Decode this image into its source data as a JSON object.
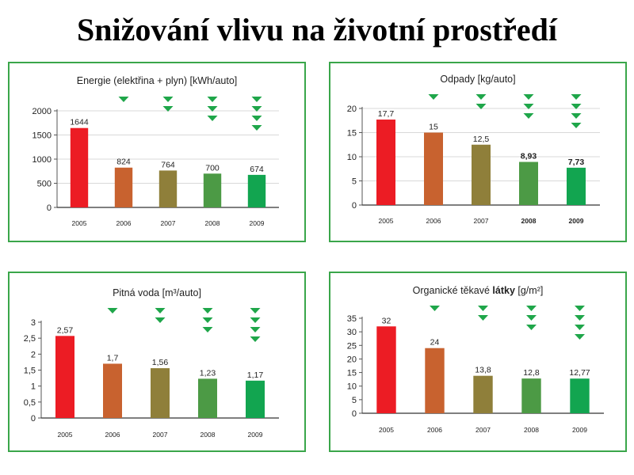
{
  "page": {
    "title": "Snižování vlivu na životní prostředí"
  },
  "colors": {
    "panel_border": "#3aa64a",
    "arrow": "#1fa64a",
    "grid": "#d9d9d9"
  },
  "chart_data": [
    {
      "type": "bar",
      "title": "Energie (elektřina + plyn) [kWh/auto]",
      "title_parts": [
        {
          "text": "Energie (elektřina + plyn) [kWh/auto]",
          "bold": false
        }
      ],
      "categories": [
        "2005",
        "2006",
        "2007",
        "2008",
        "2009"
      ],
      "values": [
        1644,
        824,
        764,
        700,
        674
      ],
      "data_labels": [
        "1644",
        "824",
        "764",
        "700",
        "674"
      ],
      "label_bold": [
        false,
        false,
        false,
        false,
        false
      ],
      "cat_bold": [
        false,
        false,
        false,
        false,
        false
      ],
      "arrows": [
        0,
        1,
        2,
        3,
        4
      ],
      "colors": [
        "#ec1c24",
        "#c8622f",
        "#8f7f3a",
        "#4c9a45",
        "#12a550"
      ],
      "ylim": [
        0,
        2000
      ],
      "yticks": [
        "0",
        "500",
        "1000",
        "1500",
        "2000"
      ],
      "ytick_values": [
        0,
        500,
        1000,
        1500,
        2000
      ],
      "grid": true
    },
    {
      "type": "bar",
      "title": "Odpady [kg/auto]",
      "title_parts": [
        {
          "text": "Odpady [kg/auto]",
          "bold": false
        }
      ],
      "categories": [
        "2005",
        "2006",
        "2007",
        "2008",
        "2009"
      ],
      "values": [
        17.7,
        15,
        12.5,
        8.93,
        7.73
      ],
      "data_labels": [
        "17,7",
        "15",
        "12,5",
        "8,93",
        "7,73"
      ],
      "label_bold": [
        false,
        false,
        false,
        true,
        true
      ],
      "cat_bold": [
        false,
        false,
        false,
        true,
        true
      ],
      "arrows": [
        0,
        1,
        2,
        3,
        4
      ],
      "colors": [
        "#ec1c24",
        "#c8622f",
        "#8f7f3a",
        "#4c9a45",
        "#12a550"
      ],
      "ylim": [
        0,
        20
      ],
      "yticks": [
        "0",
        "5",
        "10",
        "15",
        "20"
      ],
      "ytick_values": [
        0,
        5,
        10,
        15,
        20
      ],
      "grid": true
    },
    {
      "type": "bar",
      "title": "Pitná voda [m³/auto]",
      "title_parts": [
        {
          "text": "Pitná voda [m³/auto]",
          "bold": false
        }
      ],
      "categories": [
        "2005",
        "2006",
        "2007",
        "2008",
        "2009"
      ],
      "values": [
        2.57,
        1.7,
        1.56,
        1.23,
        1.17
      ],
      "data_labels": [
        "2,57",
        "1,7",
        "1,56",
        "1,23",
        "1,17"
      ],
      "label_bold": [
        false,
        false,
        false,
        false,
        false
      ],
      "cat_bold": [
        false,
        false,
        false,
        false,
        false
      ],
      "arrows": [
        0,
        1,
        2,
        3,
        4
      ],
      "colors": [
        "#ec1c24",
        "#c8622f",
        "#8f7f3a",
        "#4c9a45",
        "#12a550"
      ],
      "ylim": [
        0,
        3
      ],
      "yticks": [
        "0",
        "0,5",
        "1",
        "1,5",
        "2",
        "2,5",
        "3"
      ],
      "ytick_values": [
        0,
        0.5,
        1,
        1.5,
        2,
        2.5,
        3
      ],
      "grid": false
    },
    {
      "type": "bar",
      "title": "Organické těkavé látky [g/m²]",
      "title_parts": [
        {
          "text": "Organické těkavé ",
          "bold": false
        },
        {
          "text": "látky",
          "bold": true
        },
        {
          "text": " [g/m²]",
          "bold": false
        }
      ],
      "categories": [
        "2005",
        "2006",
        "2007",
        "2008",
        "2009"
      ],
      "values": [
        32,
        24,
        13.8,
        12.8,
        12.77
      ],
      "data_labels": [
        "32",
        "24",
        "13,8",
        "12,8",
        "12,77"
      ],
      "label_bold": [
        false,
        false,
        false,
        false,
        false
      ],
      "cat_bold": [
        false,
        false,
        false,
        false,
        false
      ],
      "arrows": [
        0,
        1,
        2,
        3,
        4
      ],
      "colors": [
        "#ec1c24",
        "#c8622f",
        "#8f7f3a",
        "#4c9a45",
        "#12a550"
      ],
      "ylim": [
        0,
        35
      ],
      "yticks": [
        "0",
        "5",
        "10",
        "15",
        "20",
        "25",
        "30",
        "35"
      ],
      "ytick_values": [
        0,
        5,
        10,
        15,
        20,
        25,
        30,
        35
      ],
      "grid": false
    }
  ]
}
